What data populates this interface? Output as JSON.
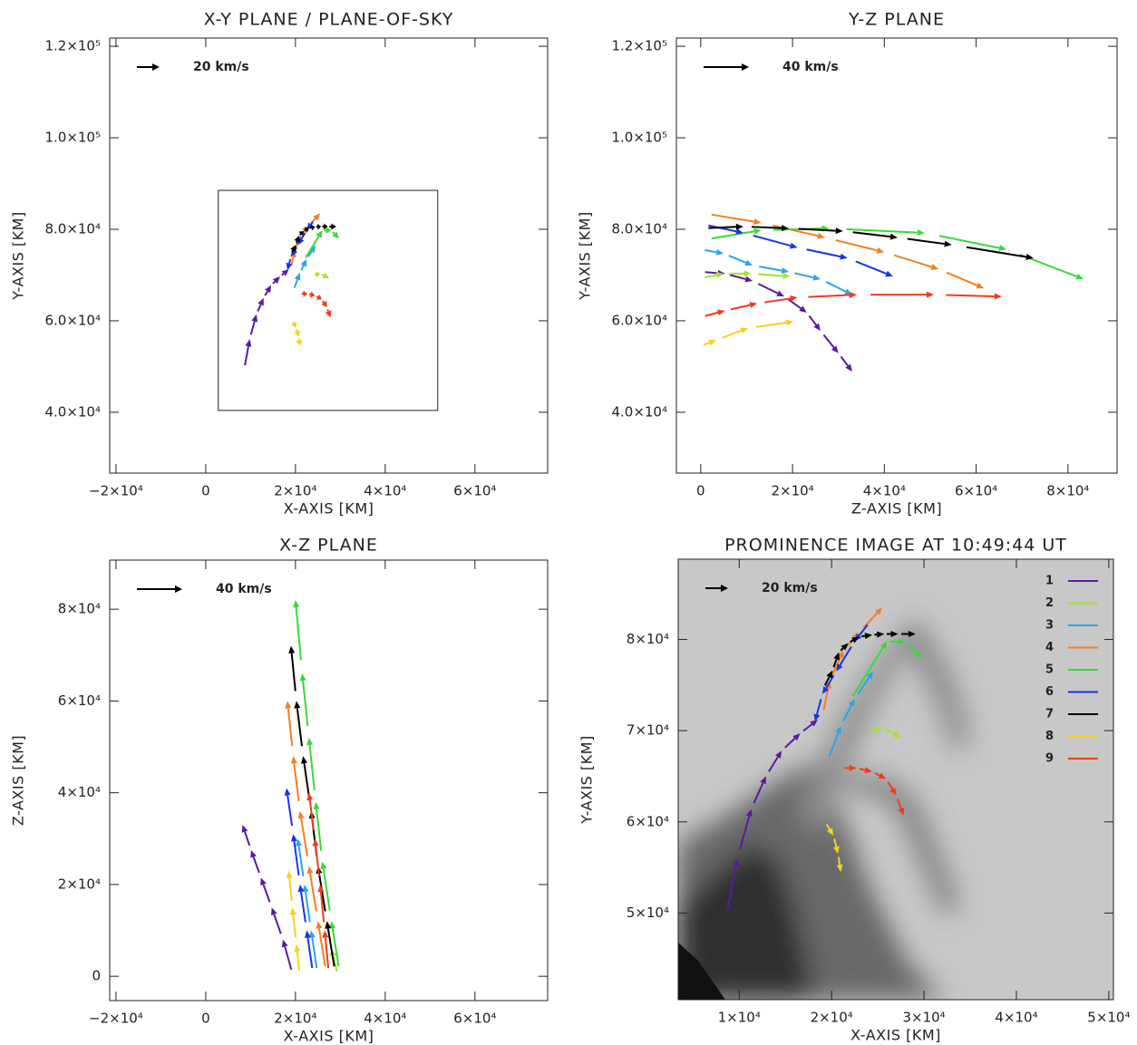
{
  "chart_data": [
    {
      "type": "quiver",
      "title": "X-Y PLANE / PLANE-OF-SKY",
      "x_label": "X-AXIS [KM]",
      "y_label": "Y-AXIS [KM]",
      "key_label": "20 km/s",
      "xlim": [
        -21400,
        76200
      ],
      "ylim": [
        26700,
        121800
      ],
      "xticks": [
        {
          "value": -20000,
          "label": "−2×10⁴"
        },
        0,
        {
          "value": 20000,
          "label": "2×10⁴"
        },
        {
          "value": 40000,
          "label": "4×10⁴"
        },
        {
          "value": 60000,
          "label": "6×10⁴"
        }
      ],
      "yticks": [
        {
          "value": 40000,
          "label": "4.0×10⁴"
        },
        {
          "value": 60000,
          "label": "6.0×10⁴"
        },
        {
          "value": 80000,
          "label": "8.0×10⁴"
        },
        {
          "value": 100000,
          "label": "1.0×10⁵"
        },
        {
          "value": 120000,
          "label": "1.2×10⁵"
        }
      ],
      "box": {
        "xlim": [
          2800,
          51700
        ],
        "ylim": [
          40400,
          88500
        ]
      },
      "series": [
        {
          "color": "#5a1a9e",
          "x": [
            8500,
            9800,
            11300,
            12900,
            14600,
            16600,
            18500
          ],
          "y": [
            49000,
            56000,
            61400,
            65000,
            67800,
            69700,
            71200
          ]
        },
        {
          "color": "#a6e22a",
          "x": [
            24000,
            25500,
            27500
          ],
          "y": [
            70000,
            70300,
            69300
          ]
        },
        {
          "color": "#2aa5ea",
          "x": [
            19500,
            21000,
            22500,
            24500
          ],
          "y": [
            66500,
            70500,
            73500,
            76500
          ]
        },
        {
          "color": "#f47f20",
          "x": [
            19000,
            19800,
            21300,
            23000,
            25500
          ],
          "y": [
            71500,
            75500,
            78800,
            80800,
            83500
          ]
        },
        {
          "color": "#3ad93a",
          "x": [
            21500,
            26000,
            28000,
            29700
          ],
          "y": [
            72500,
            79800,
            79700,
            78000
          ]
        },
        {
          "color": "#1a33e6",
          "x": [
            24200,
            22500,
            20500,
            19000,
            18200
          ],
          "y": [
            82000,
            79800,
            76500,
            74000,
            71000
          ]
        },
        {
          "color": "#000000",
          "x": [
            19100,
            20100,
            20800,
            21800,
            23000,
            24400,
            25700,
            27200,
            29100
          ],
          "y": [
            74600,
            76600,
            78600,
            79600,
            80300,
            80500,
            80600,
            80600,
            80600
          ]
        },
        {
          "color": "#f8d21c",
          "x": [
            19300,
            20200,
            20700,
            21000
          ],
          "y": [
            60000,
            58500,
            56500,
            54500
          ]
        },
        {
          "color": "#f03c1e",
          "x": [
            21100,
            22700,
            24400,
            25900,
            27000,
            27800
          ],
          "y": [
            65900,
            65900,
            65500,
            64700,
            62900,
            60700
          ]
        }
      ]
    },
    {
      "type": "quiver",
      "title": "Y-Z PLANE",
      "x_label": "Z-AXIS [KM]",
      "y_label": "Y-AXIS [KM]",
      "key_label": "40 km/s",
      "xlim": [
        -5300,
        90700
      ],
      "ylim": [
        26700,
        121800
      ],
      "xticks": [
        0,
        {
          "value": 20000,
          "label": "2×10⁴"
        },
        {
          "value": 40000,
          "label": "4×10⁴"
        },
        {
          "value": 60000,
          "label": "6×10⁴"
        },
        {
          "value": 80000,
          "label": "8×10⁴"
        }
      ],
      "yticks": [
        {
          "value": 40000,
          "label": "4.0×10⁴"
        },
        {
          "value": 60000,
          "label": "6.0×10⁴"
        },
        {
          "value": 80000,
          "label": "8.0×10⁴"
        },
        {
          "value": 100000,
          "label": "1.0×10⁵"
        },
        {
          "value": 120000,
          "label": "1.2×10⁵"
        }
      ],
      "series": [
        {
          "color": "#5a1a9e",
          "x": [
            0,
            5300,
            11300,
            18200,
            23100,
            26100,
            30000,
            33000
          ],
          "y": [
            70700,
            70300,
            68700,
            65300,
            61800,
            57800,
            52900,
            48900
          ]
        },
        {
          "color": "#a6e22a",
          "x": [
            0,
            5000,
            11000,
            19500
          ],
          "y": [
            69300,
            70300,
            70300,
            69700
          ]
        },
        {
          "color": "#2aa5ea",
          "x": [
            0,
            5000,
            11300,
            19200,
            26100,
            33000
          ],
          "y": [
            75600,
            74700,
            72100,
            70700,
            69100,
            65700
          ]
        },
        {
          "color": "#f47f20",
          "x": [
            0,
            13200,
            27100,
            40000,
            51800,
            61700
          ],
          "y": [
            83600,
            81400,
            78200,
            75000,
            71300,
            67100
          ]
        },
        {
          "color": "#3ad93a",
          "x": [
            0,
            13200,
            28000,
            48800,
            66600,
            83400
          ],
          "y": [
            77600,
            79800,
            80200,
            79200,
            75600,
            69100
          ]
        },
        {
          "color": "#1a33e6",
          "x": [
            0,
            9300,
            21100,
            32000,
            41900
          ],
          "y": [
            81200,
            79200,
            76000,
            73700,
            69700
          ]
        },
        {
          "color": "#000000",
          "x": [
            0,
            9300,
            19200,
            31000,
            42900,
            54700,
            72500
          ],
          "y": [
            80200,
            80600,
            80200,
            79600,
            78200,
            76600,
            73700
          ]
        },
        {
          "color": "#f8d21c",
          "x": [
            0,
            3400,
            10300,
            20200
          ],
          "y": [
            54500,
            55800,
            58400,
            59800
          ]
        },
        {
          "color": "#f03c1e",
          "x": [
            0,
            5300,
            12300,
            21100,
            34000,
            50800,
            65600
          ],
          "y": [
            60800,
            62200,
            63800,
            65100,
            65700,
            65700,
            65300
          ]
        }
      ]
    },
    {
      "type": "quiver",
      "title": "X-Z PLANE",
      "x_label": "X-AXIS [KM]",
      "y_label": "Z-AXIS [KM]",
      "key_label": "40 km/s",
      "xlim": [
        -21400,
        76200
      ],
      "ylim": [
        -5300,
        90700
      ],
      "xticks": [
        {
          "value": -20000,
          "label": "−2×10⁴"
        },
        0,
        {
          "value": 20000,
          "label": "2×10⁴"
        },
        {
          "value": 40000,
          "label": "4×10⁴"
        },
        {
          "value": 60000,
          "label": "6×10⁴"
        }
      ],
      "yticks": [
        0,
        {
          "value": 20000,
          "label": "2×10⁴"
        },
        {
          "value": 40000,
          "label": "4×10⁴"
        },
        {
          "value": 60000,
          "label": "6×10⁴"
        },
        {
          "value": 80000,
          "label": "8×10⁴"
        }
      ],
      "series": [
        {
          "color": "#5a1a9e",
          "x": [
            19500,
            17200,
            14700,
            12300,
            10100,
            8200
          ],
          "y": [
            0,
            8000,
            15000,
            21500,
            27500,
            33000
          ]
        },
        {
          "color": "#a6e22a",
          "x": [
            29500,
            28000,
            27000
          ],
          "y": [
            0,
            6000,
            12000
          ]
        },
        {
          "color": "#2aa5ea",
          "x": [
            25000,
            23500,
            22000,
            20500
          ],
          "y": [
            0,
            10000,
            20000,
            30000
          ]
        },
        {
          "color": "#f47f20",
          "x": [
            27000,
            25000,
            23000,
            21000,
            19500,
            18200
          ],
          "y": [
            0,
            12000,
            24000,
            36000,
            48000,
            60000
          ]
        },
        {
          "color": "#3ad93a",
          "x": [
            30000,
            28000,
            26000,
            24500,
            23000,
            21500,
            20000
          ],
          "y": [
            0,
            12000,
            25000,
            38000,
            52000,
            66000,
            82000
          ]
        },
        {
          "color": "#1a33e6",
          "x": [
            24000,
            22500,
            21000,
            19500,
            18000
          ],
          "y": [
            0,
            10000,
            20000,
            31000,
            41000
          ]
        },
        {
          "color": "#000000",
          "x": [
            29000,
            27000,
            25000,
            23500,
            21700,
            20200,
            19000
          ],
          "y": [
            0,
            12000,
            24000,
            36000,
            48000,
            60000,
            72000
          ]
        },
        {
          "color": "#f8d21c",
          "x": [
            21000,
            20200,
            19300,
            18500
          ],
          "y": [
            0,
            7000,
            15000,
            23000
          ]
        },
        {
          "color": "#f03c1e",
          "x": [
            27500,
            26500,
            25500,
            24300,
            23000
          ],
          "y": [
            0,
            10000,
            20000,
            30000,
            40000
          ]
        }
      ]
    },
    {
      "type": "quiver",
      "title": "PROMINENCE IMAGE AT 10:49:44 UT",
      "x_label": "X-AXIS [KM]",
      "y_label": "Y-AXIS [KM]",
      "key_label": "20 km/s",
      "image": true,
      "legend": "upper right",
      "xlim": [
        3400,
        50500
      ],
      "ylim": [
        40500,
        88800
      ],
      "xticks": [
        {
          "value": 10000,
          "label": "1×10⁴"
        },
        {
          "value": 20000,
          "label": "2×10⁴"
        },
        {
          "value": 30000,
          "label": "3×10⁴"
        },
        {
          "value": 40000,
          "label": "4×10⁴"
        },
        {
          "value": 50000,
          "label": "5×10⁴"
        }
      ],
      "yticks": [
        {
          "value": 50000,
          "label": "5×10⁴"
        },
        {
          "value": 60000,
          "label": "6×10⁴"
        },
        {
          "value": 70000,
          "label": "7×10⁴"
        },
        {
          "value": 80000,
          "label": "8×10⁴"
        }
      ],
      "series": [
        {
          "name": "1",
          "color": "#5a1a9e",
          "x": [
            8500,
            9800,
            11300,
            12900,
            14600,
            16600,
            18500
          ],
          "y": [
            49000,
            56000,
            61400,
            65000,
            67800,
            69700,
            71200
          ]
        },
        {
          "name": "2",
          "color": "#a6e22a",
          "x": [
            24000,
            25500,
            27500
          ],
          "y": [
            70000,
            70300,
            69300
          ]
        },
        {
          "name": "3",
          "color": "#2aa5ea",
          "x": [
            19500,
            21000,
            22500,
            24500
          ],
          "y": [
            66500,
            70500,
            73500,
            76500
          ]
        },
        {
          "name": "4",
          "color": "#f47f20",
          "x": [
            19000,
            19800,
            21300,
            23000,
            25500
          ],
          "y": [
            71500,
            75500,
            78800,
            80800,
            83500
          ]
        },
        {
          "name": "5",
          "color": "#3ad93a",
          "x": [
            21500,
            26000,
            28000,
            29700
          ],
          "y": [
            72500,
            79800,
            79700,
            78000
          ]
        },
        {
          "name": "6",
          "color": "#1a33e6",
          "x": [
            24200,
            22500,
            20500,
            19000,
            18200
          ],
          "y": [
            82000,
            79800,
            76500,
            74000,
            71000
          ]
        },
        {
          "name": "7",
          "color": "#000000",
          "x": [
            19100,
            20100,
            20800,
            21800,
            23000,
            24400,
            25700,
            27200,
            29100
          ],
          "y": [
            74600,
            76600,
            78600,
            79600,
            80300,
            80500,
            80600,
            80600,
            80600
          ]
        },
        {
          "name": "8",
          "color": "#f8d21c",
          "x": [
            19300,
            20200,
            20700,
            21000
          ],
          "y": [
            60000,
            58500,
            56500,
            54500
          ]
        },
        {
          "name": "9",
          "color": "#f03c1e",
          "x": [
            21100,
            22700,
            24400,
            25900,
            27000,
            27800
          ],
          "y": [
            65900,
            65900,
            65500,
            64700,
            62900,
            60700
          ]
        }
      ]
    }
  ]
}
